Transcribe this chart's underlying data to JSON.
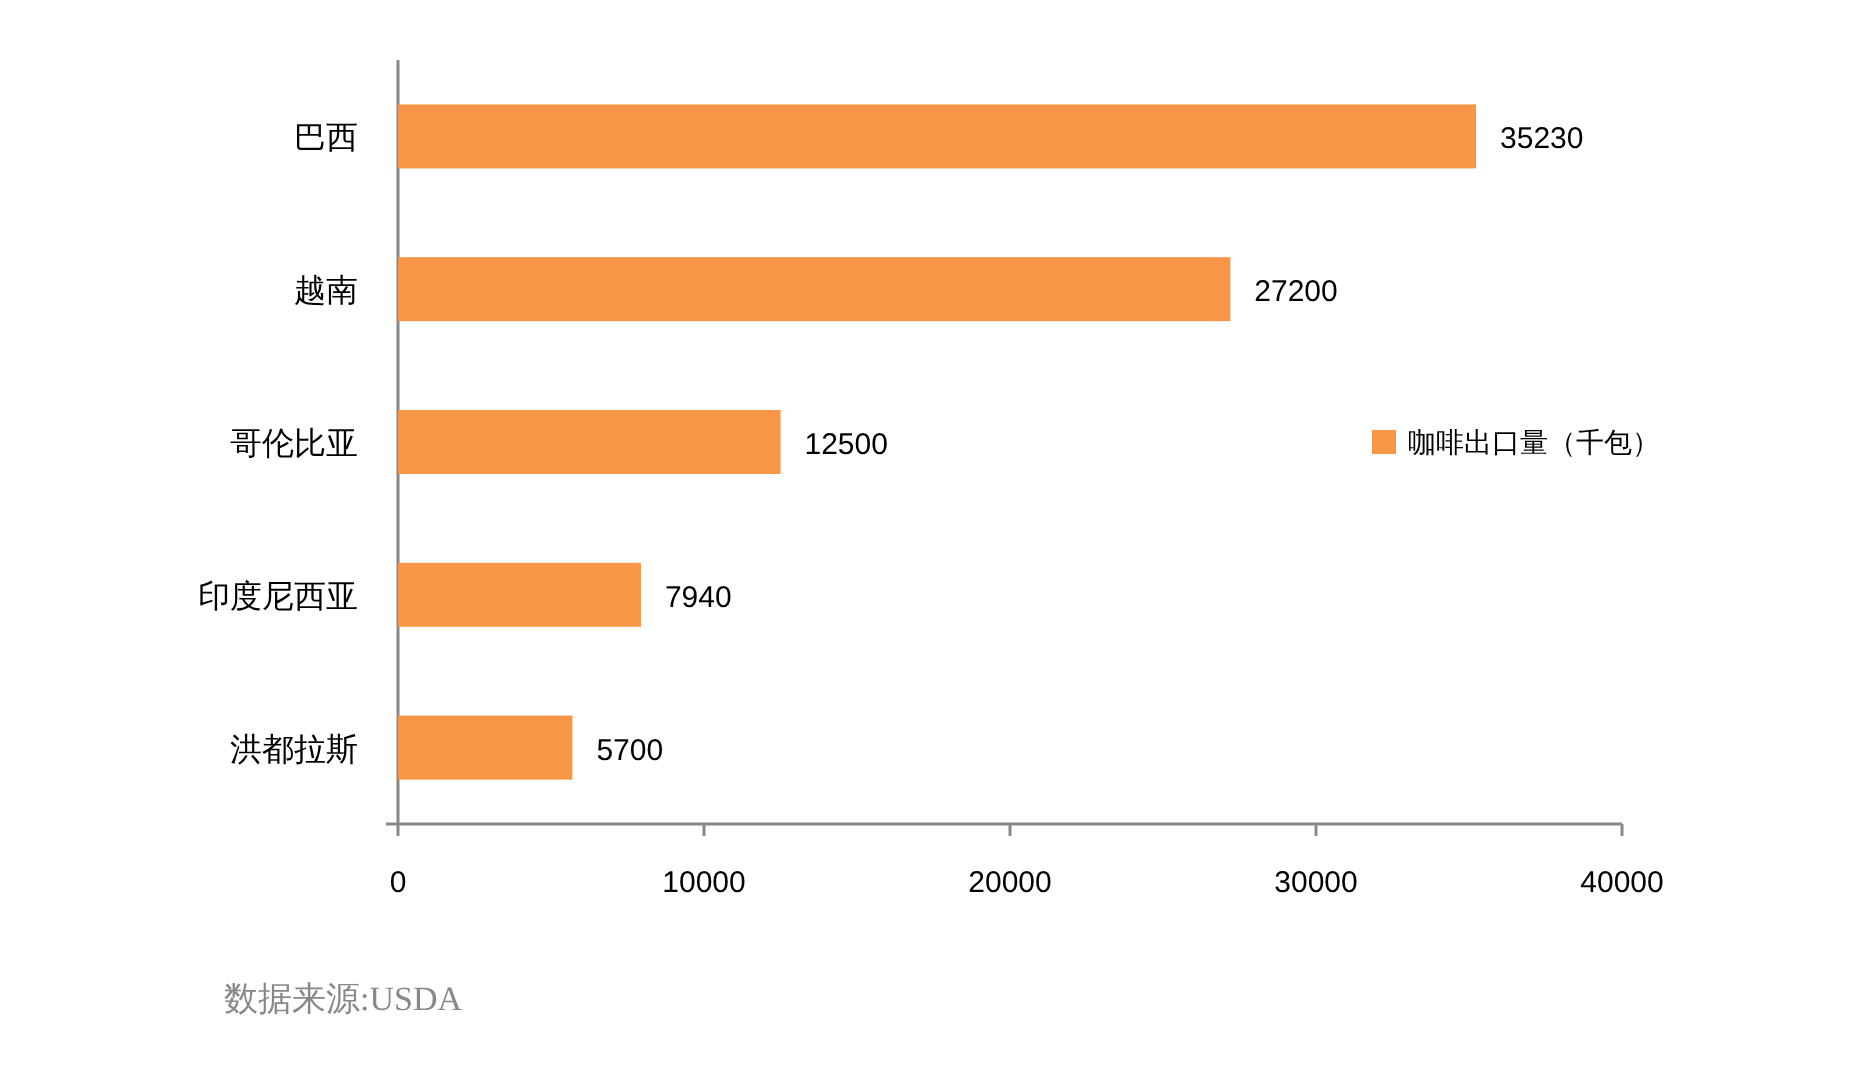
{
  "chart_data": {
    "type": "bar",
    "orientation": "horizontal",
    "categories": [
      "巴西",
      "越南",
      "哥伦比亚",
      "印度尼西亚",
      "洪都拉斯"
    ],
    "series": [
      {
        "name": "咖啡出口量（千包）",
        "color": "#f79646",
        "values": [
          35230,
          27200,
          12500,
          7940,
          5700
        ]
      }
    ],
    "xlim": [
      0,
      40000
    ],
    "xticks": [
      0,
      10000,
      20000,
      30000,
      40000
    ],
    "data_labels": true,
    "legend": "right",
    "grid": false,
    "annotations": [
      "数据来源:USDA"
    ]
  }
}
